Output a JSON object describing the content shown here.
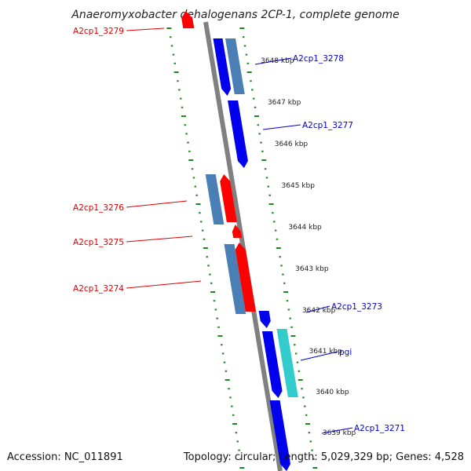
{
  "title": "Anaeromyxobacter dehalogenans 2CP-1, complete genome",
  "footer": {
    "accession": "Accession: NC_011891",
    "stats": "Topology: circular; Length: 5,029,329 bp; Genes: 4,528"
  },
  "colors": {
    "forward": "#0000ee",
    "reverse": "#ff0000",
    "steelblue": "#4a7fb5",
    "cyan": "#33cccc",
    "backbone": "#808080",
    "ticks": "#1a8a1a",
    "label_forward": "#0000cc",
    "label_reverse": "#dd0000"
  },
  "kbp_ticks": [
    "3648 kbp",
    "3647 kbp",
    "3646 kbp",
    "3645 kbp",
    "3644 kbp",
    "3643 kbp",
    "3642 kbp",
    "3641 kbp",
    "3640 kbp",
    "3639 kbp"
  ],
  "gene_labels": {
    "left": [
      "A2cp1_3279",
      "A2cp1_3276",
      "A2cp1_3275",
      "A2cp1_3274"
    ],
    "right": [
      "A2cp1_3278",
      "A2cp1_3277",
      "A2cp1_3273",
      "pgi",
      "A2cp1_3271"
    ]
  }
}
